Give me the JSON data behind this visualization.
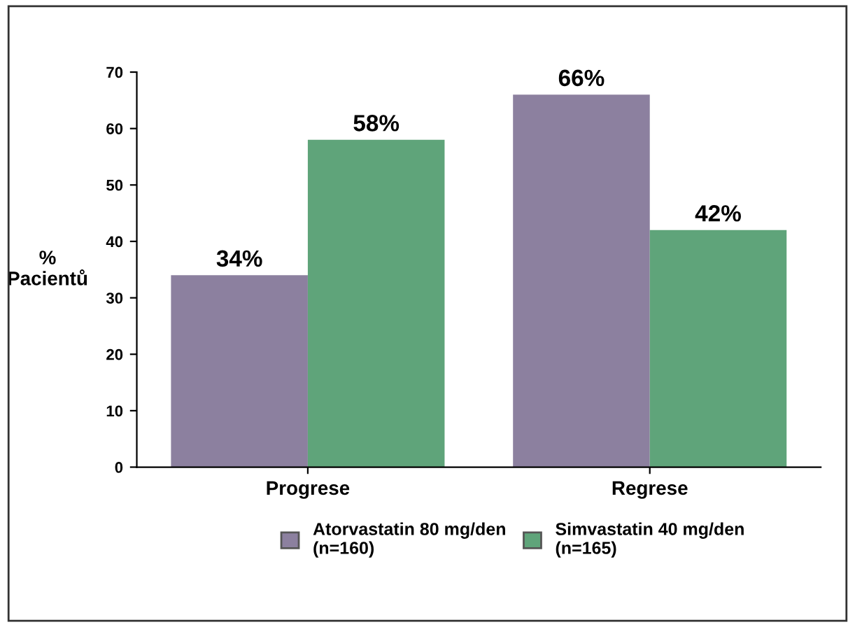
{
  "chart_data": {
    "type": "bar",
    "ylabel": "%\nPacientů",
    "categories": [
      "Progrese",
      "Regrese"
    ],
    "series": [
      {
        "name": "Atorvastatin 80 mg/den\n(n=160)",
        "color": "#8c809f",
        "values": [
          34,
          66
        ],
        "value_labels": [
          "34%",
          "66%"
        ]
      },
      {
        "name": "Simvastatin 40 mg/den\n(n=165)",
        "color": "#5fa47a",
        "values": [
          58,
          42
        ],
        "value_labels": [
          "58%",
          "42%"
        ]
      }
    ],
    "ylim": [
      0,
      70
    ],
    "yticks": [
      0,
      10,
      20,
      30,
      40,
      50,
      60,
      70
    ],
    "grid": false,
    "legend": "bottom"
  }
}
